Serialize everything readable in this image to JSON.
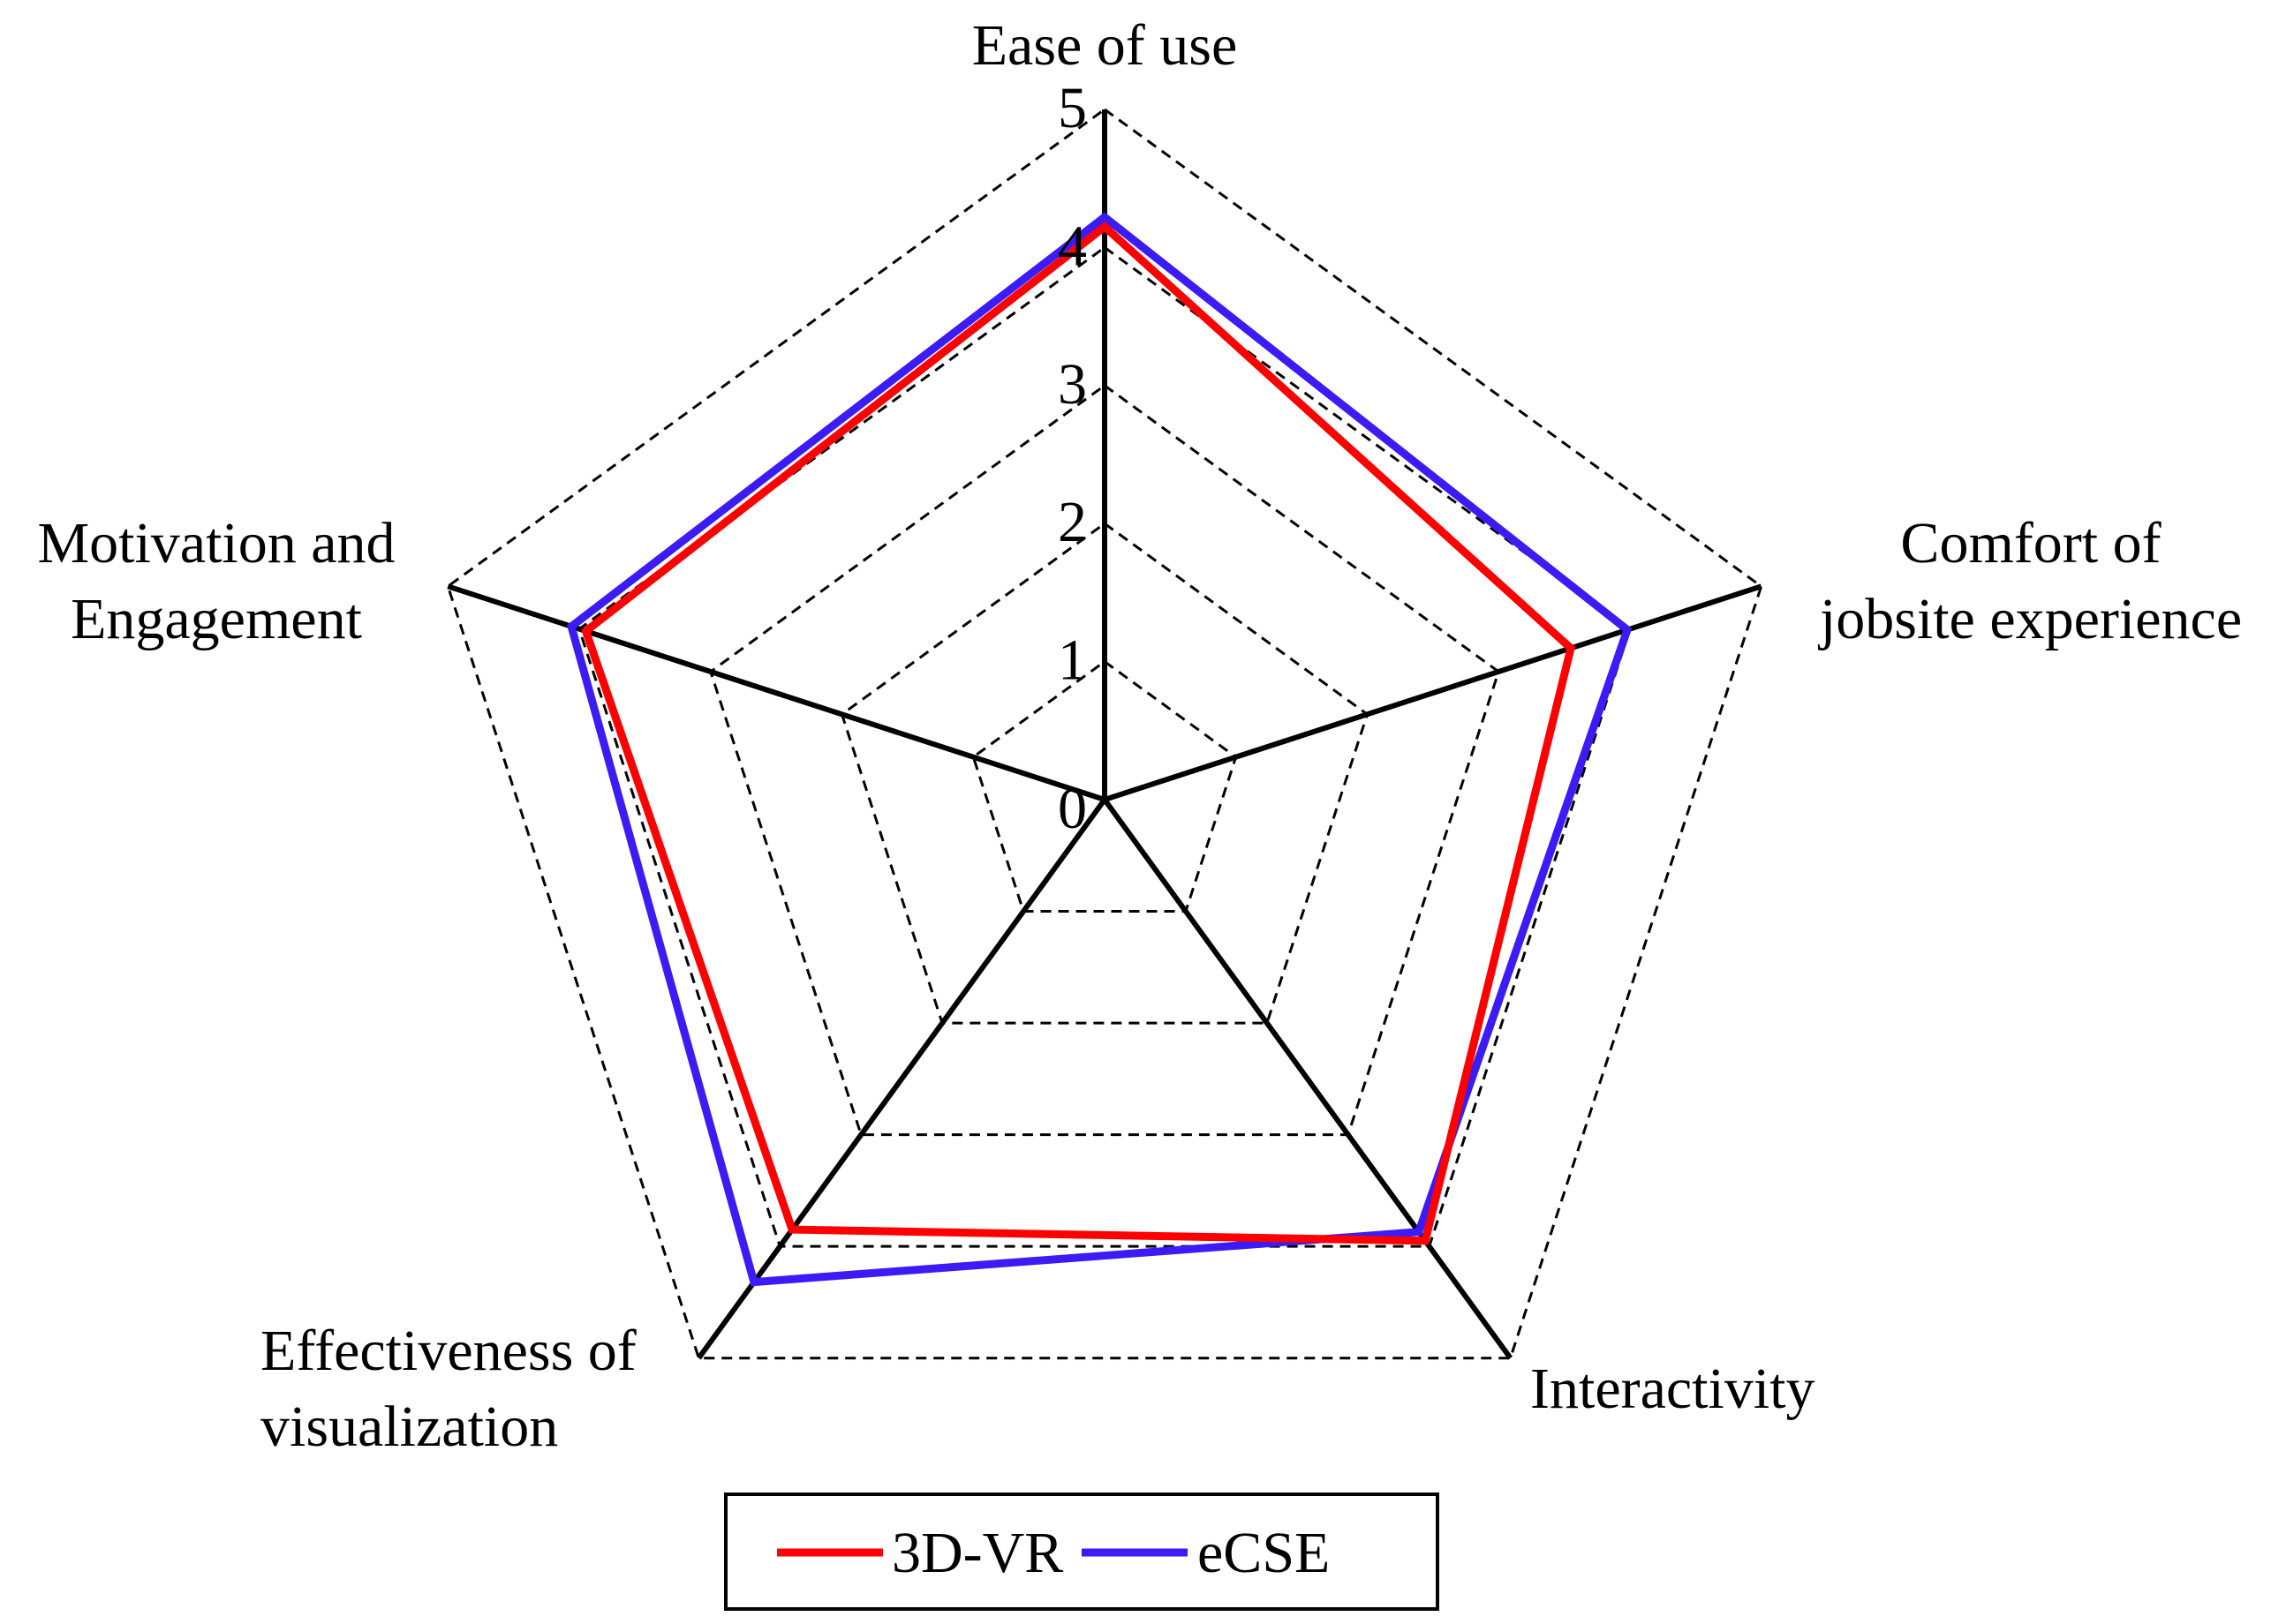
{
  "chart_data": {
    "type": "radar",
    "axes": [
      [
        "Ease of use"
      ],
      [
        "Comfort of",
        "jobsite experience"
      ],
      [
        "Interactivity"
      ],
      [
        "Effectiveness of",
        "visualization"
      ],
      [
        "Motivation and",
        "Engagement"
      ]
    ],
    "rlim": [
      0,
      5
    ],
    "ticks": [
      "0",
      "1",
      "2",
      "3",
      "4",
      "5"
    ],
    "grid": "dashed",
    "series": [
      {
        "name": "3D-VR",
        "color": "#ff0000",
        "values": [
          4.15,
          3.55,
          3.95,
          3.85,
          3.95
        ]
      },
      {
        "name": "eCSE",
        "color": "#3b1cf5",
        "values": [
          4.22,
          3.98,
          3.87,
          4.32,
          4.06
        ]
      }
    ],
    "legend": "bottom-center"
  }
}
